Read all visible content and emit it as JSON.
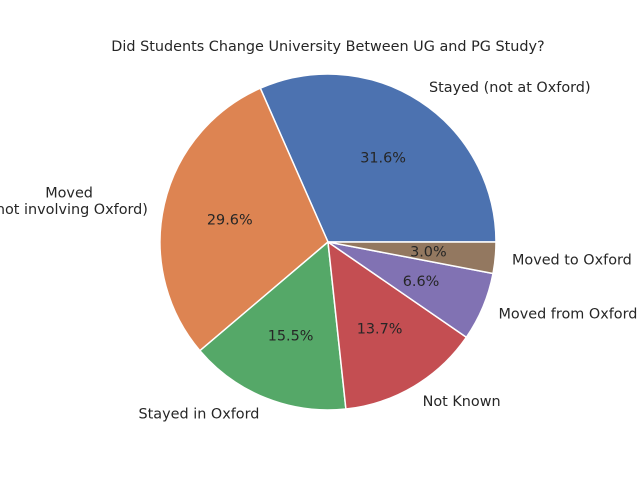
{
  "chart_data": {
    "type": "pie",
    "title": "Did Students Change University Between UG and PG Study?",
    "slices": [
      {
        "label": "Stayed (not at Oxford)",
        "value": 31.6,
        "pct_label": "31.6%",
        "color": "#4C72B0"
      },
      {
        "label": "Moved\n(not involving Oxford)",
        "value": 29.6,
        "pct_label": "29.6%",
        "color": "#DD8452"
      },
      {
        "label": "Stayed in Oxford",
        "value": 15.5,
        "pct_label": "15.5%",
        "color": "#55A868"
      },
      {
        "label": "Not Known",
        "value": 13.7,
        "pct_label": "13.7%",
        "color": "#C44E52"
      },
      {
        "label": "Moved from Oxford",
        "value": 6.6,
        "pct_label": "6.6%",
        "color": "#8172B3"
      },
      {
        "label": "Moved to Oxford",
        "value": 3.0,
        "pct_label": "3.0%",
        "color": "#937860"
      }
    ],
    "start_angle_deg": 0,
    "direction": "counterclockwise"
  }
}
